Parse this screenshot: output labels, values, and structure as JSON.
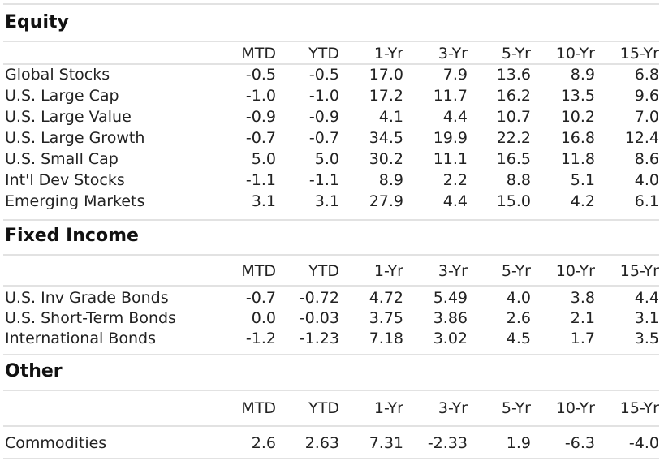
{
  "equity": {
    "title": "Equity",
    "headers": [
      "MTD",
      "YTD",
      "1-Yr",
      "3-Yr",
      "5-Yr",
      "10-Yr",
      "15-Yr"
    ],
    "rows": [
      {
        "label": "Global Stocks",
        "values": [
          "-0.5",
          "-0.5",
          "17.0",
          "7.9",
          "13.6",
          "8.9",
          "6.8"
        ]
      },
      {
        "label": "U.S. Large Cap",
        "values": [
          "-1.0",
          "-1.0",
          "17.2",
          "11.7",
          "16.2",
          "13.5",
          "9.6"
        ]
      },
      {
        "label": "U.S. Large Value",
        "values": [
          "-0.9",
          "-0.9",
          "4.1",
          "4.4",
          "10.7",
          "10.2",
          "7.0"
        ]
      },
      {
        "label": "U.S. Large Growth",
        "values": [
          "-0.7",
          "-0.7",
          "34.5",
          "19.9",
          "22.2",
          "16.8",
          "12.4"
        ]
      },
      {
        "label": "U.S. Small Cap",
        "values": [
          "5.0",
          "5.0",
          "30.2",
          "11.1",
          "16.5",
          "11.8",
          "8.6"
        ]
      },
      {
        "label": "Int'l Dev Stocks",
        "values": [
          "-1.1",
          "-1.1",
          "8.9",
          "2.2",
          "8.8",
          "5.1",
          "4.0"
        ]
      },
      {
        "label": "Emerging Markets",
        "values": [
          "3.1",
          "3.1",
          "27.9",
          "4.4",
          "15.0",
          "4.2",
          "6.1"
        ]
      }
    ]
  },
  "fixed_income": {
    "title": "Fixed Income",
    "headers": [
      "MTD",
      "YTD",
      "1-Yr",
      "3-Yr",
      "5-Yr",
      "10-Yr",
      "15-Yr"
    ],
    "rows": [
      {
        "label": "U.S. Inv Grade Bonds",
        "values": [
          "-0.7",
          "-0.72",
          "4.72",
          "5.49",
          "4.0",
          "3.8",
          "4.4"
        ]
      },
      {
        "label": "U.S. Short-Term Bonds",
        "values": [
          "0.0",
          "-0.03",
          "3.75",
          "3.86",
          "2.6",
          "2.1",
          "3.1"
        ]
      },
      {
        "label": "International Bonds",
        "values": [
          "-1.2",
          "-1.23",
          "7.18",
          "3.02",
          "4.5",
          "1.7",
          "3.5"
        ]
      }
    ]
  },
  "other": {
    "title": "Other",
    "headers": [
      "MTD",
      "YTD",
      "1-Yr",
      "3-Yr",
      "5-Yr",
      "10-Yr",
      "15-Yr"
    ],
    "rows": [
      {
        "label": "Commodities",
        "values": [
          "2.6",
          "2.63",
          "7.31",
          "-2.33",
          "1.9",
          "-6.3",
          "-4.0"
        ]
      }
    ]
  }
}
